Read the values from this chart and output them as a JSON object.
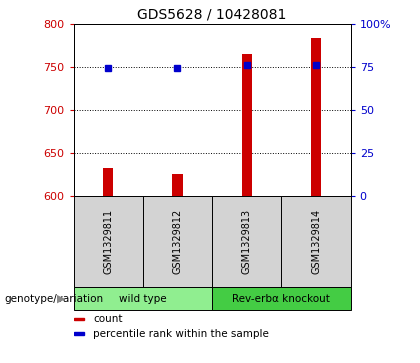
{
  "title": "GDS5628 / 10428081",
  "samples": [
    "GSM1329811",
    "GSM1329812",
    "GSM1329813",
    "GSM1329814"
  ],
  "counts": [
    633,
    625,
    765,
    783
  ],
  "percentile_ranks": [
    74,
    74,
    76,
    76
  ],
  "ylim_left": [
    600,
    800
  ],
  "ylim_right": [
    0,
    100
  ],
  "yticks_left": [
    600,
    650,
    700,
    750,
    800
  ],
  "yticks_right": [
    0,
    25,
    50,
    75,
    100
  ],
  "yticklabels_right": [
    "0",
    "25",
    "50",
    "75",
    "100%"
  ],
  "bar_color": "#cc0000",
  "dot_color": "#0000cc",
  "groups": [
    {
      "label": "wild type",
      "samples": [
        0,
        1
      ],
      "color": "#90ee90"
    },
    {
      "label": "Rev-erbα knockout",
      "samples": [
        2,
        3
      ],
      "color": "#44cc44"
    }
  ],
  "group_label": "genotype/variation",
  "legend_items": [
    {
      "color": "#cc0000",
      "label": "count"
    },
    {
      "color": "#0000cc",
      "label": "percentile rank within the sample"
    }
  ],
  "bar_width": 0.15,
  "tick_label_color_left": "#cc0000",
  "tick_label_color_right": "#0000cc",
  "sample_bg_color": "#d3d3d3",
  "title_fontsize": 10,
  "tick_fontsize": 8
}
